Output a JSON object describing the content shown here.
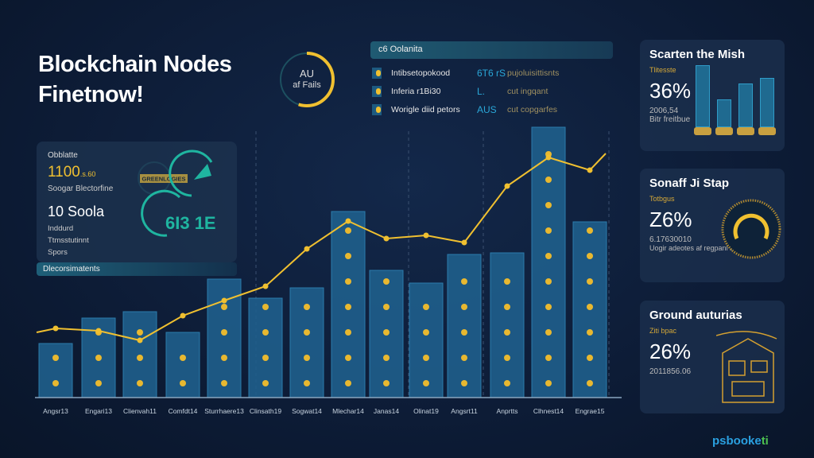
{
  "title": [
    "Blockchain Nodes",
    "Finetnow!"
  ],
  "ring": {
    "label": "AU",
    "sub": "af Fails",
    "fraction": 0.55
  },
  "legend": {
    "header": "c6 Oolanita",
    "rows": [
      {
        "name": "Intibsetopokood",
        "value": "6T6 rS",
        "desc": "pujoluisittisnts"
      },
      {
        "name": "Inferia r1Bi30",
        "value": "L.",
        "desc": "cut ingqant"
      },
      {
        "name": "Worigle diid petors",
        "value": "AUS",
        "desc": "cut copgarfes"
      }
    ]
  },
  "left_panel": {
    "label": "Obblatte",
    "value1": "1100",
    "value1_suffix": ".s.60",
    "caption1": "Soogar Blectorfine",
    "value2": "10 Soola",
    "lines": [
      "Inddurd",
      "Ttmsstutinnt",
      "Spors"
    ],
    "badge": "GREENLOGIES",
    "gauge_value": "6I3 1E"
  },
  "strip": "Dlecorsimatents",
  "colors": {
    "accent": "#f0c030",
    "bar": "#1f5f8c",
    "teal": "#1fb5a0",
    "bg": "#0c1a33"
  },
  "chart_data": {
    "type": "bar",
    "categories": [
      "Angsr13",
      "Engari13",
      "Clienvah11",
      "Comfdt14",
      "Sturrhaere13",
      "Clinsath19",
      "Sogwat14",
      "Mlechar14",
      "Janas14",
      "Olinat19",
      "Angsrt11",
      "Anprtts",
      "Clhnest14",
      "Engrae15"
    ],
    "series": [
      {
        "type": "bar",
        "values": [
          68,
          100,
          108,
          82,
          149,
          125,
          138,
          234,
          160,
          144,
          180,
          182,
          340,
          221
        ]
      },
      {
        "type": "line",
        "values": [
          87,
          84,
          72,
          103,
          122,
          140,
          187,
          222,
          200,
          204,
          195,
          266,
          302,
          286
        ]
      }
    ],
    "grid": false,
    "legend": "none"
  },
  "cards": [
    {
      "title": "Scarten the Mish",
      "sub": "Tlitesste",
      "big": "36%",
      "sm1": "2006,54",
      "sm2": "Bitr freitbue",
      "mini_bars": [
        1.0,
        0.45,
        0.7,
        0.8
      ]
    },
    {
      "title": "Sonaff Ji Stap",
      "sub": "Totbgus",
      "big": "Z6%",
      "sm1": "6.17630010",
      "sm2": "Uogir adeotes af regpanl otions"
    },
    {
      "title": "Ground auturias",
      "sub": "Ziti bpac",
      "big": "26%",
      "sm1": "2011856.06"
    }
  ],
  "logo": {
    "a": "psbooke",
    "b": "ti"
  }
}
